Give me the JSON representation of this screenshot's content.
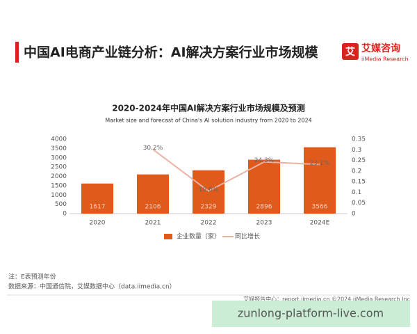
{
  "header": {
    "title": "中国AI电商产业链分析：AI解决方案行业市场规模",
    "logo_cn": "艾媒咨询",
    "logo_en": "iiMedia Research"
  },
  "chart_data": {
    "type": "bar",
    "title": "2020-2024年中国AI解决方案行业市场规模及预测",
    "subtitle": "Market size and forecast of China's AI solution industry from 2020 to 2024",
    "categories": [
      "2020",
      "2021",
      "2022",
      "2023",
      "2024E"
    ],
    "series": [
      {
        "name": "企业数量（家）",
        "color": "#e05a1c",
        "values": [
          1617,
          2106,
          2329,
          2896,
          3566
        ]
      },
      {
        "name": "同比增长",
        "color": "#e9b3a3",
        "axis": "y2",
        "type": "line",
        "values": [
          null,
          0.302,
          0.106,
          0.243,
          0.231
        ],
        "value_labels": [
          null,
          "30.2%",
          "10.6%",
          "24.3%",
          "23.1%"
        ]
      }
    ],
    "ylim": [
      0,
      4000
    ],
    "yticks": [
      0,
      500,
      1000,
      1500,
      2000,
      2500,
      3000,
      3500,
      4000
    ],
    "y2lim": [
      0,
      0.35
    ],
    "y2ticks": [
      0,
      0.05,
      0.1,
      0.15,
      0.2,
      0.25,
      0.3,
      0.35
    ],
    "grid": false
  },
  "notes": {
    "note": "注：E表预测年份",
    "source": "数据来源：中国通信院，艾媒数据中心（data.iimedia.cn）"
  },
  "footer": "艾媒报告中心：report.iimedia.cn  ©2024  iiMedia Research  Inc",
  "watermark": "zunlong-platform-live.com"
}
